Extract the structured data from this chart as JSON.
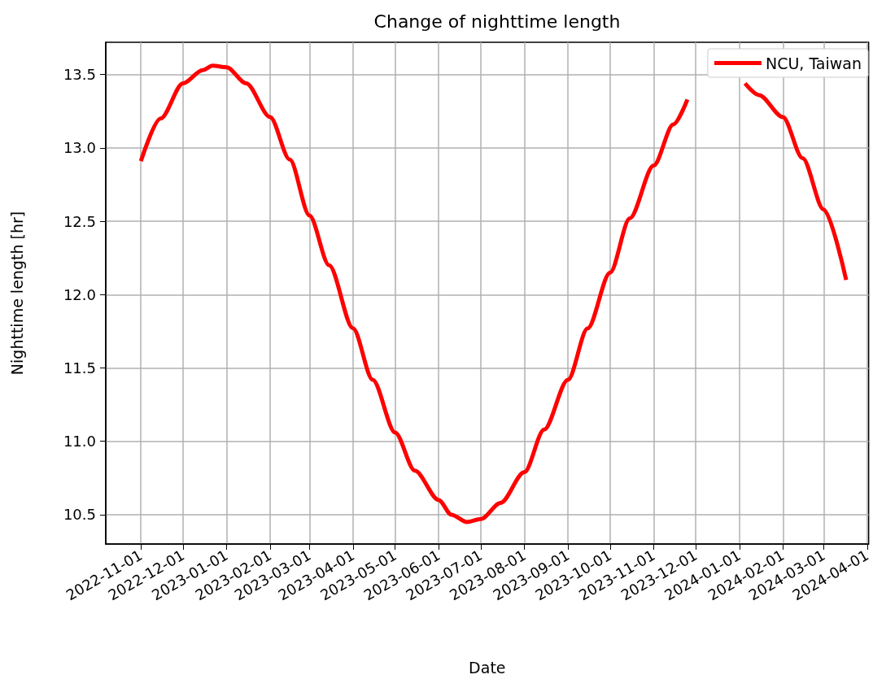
{
  "chart_data": {
    "type": "line",
    "title": "Change of nighttime length",
    "xlabel": "Date",
    "ylabel": "Nighttime length [hr]",
    "series": [
      {
        "name": "NCU, Taiwan",
        "color": "#ff0000",
        "x": [
          "2022-11-01",
          "2022-11-15",
          "2022-12-01",
          "2022-12-15",
          "2022-12-22",
          "2023-01-01",
          "2023-01-15",
          "2023-02-01",
          "2023-02-15",
          "2023-03-01",
          "2023-03-15",
          "2023-04-01",
          "2023-04-15",
          "2023-05-01",
          "2023-05-15",
          "2023-06-01",
          "2023-06-10",
          "2023-06-21",
          "2023-07-01",
          "2023-07-15",
          "2023-08-01",
          "2023-08-15",
          "2023-09-01",
          "2023-09-15",
          "2023-10-01",
          "2023-10-15",
          "2023-11-01",
          "2023-11-15",
          "2023-11-25",
          "2023-12-08",
          "2023-12-22",
          "2024-01-05",
          "2024-01-15",
          "2024-02-01",
          "2024-02-15",
          "2024-03-01",
          "2024-03-17"
        ],
        "values": [
          12.91,
          13.2,
          13.44,
          13.53,
          13.56,
          13.55,
          13.44,
          13.21,
          12.92,
          12.54,
          12.2,
          11.77,
          11.42,
          11.06,
          10.8,
          10.6,
          10.5,
          10.45,
          10.47,
          10.58,
          10.79,
          11.08,
          11.42,
          11.77,
          12.15,
          12.52,
          12.88,
          13.16,
          13.33,
          null,
          null,
          13.44,
          13.36,
          13.21,
          12.93,
          12.58,
          12.1
        ]
      }
    ],
    "xlim": [
      "2022-10-07",
      "2024-04-02"
    ],
    "xticks": [
      "2022-11-01",
      "2022-12-01",
      "2023-01-01",
      "2023-02-01",
      "2023-03-01",
      "2023-04-01",
      "2023-05-01",
      "2023-06-01",
      "2023-07-01",
      "2023-08-01",
      "2023-09-01",
      "2023-10-01",
      "2023-11-01",
      "2023-12-01",
      "2024-01-01",
      "2024-02-01",
      "2024-03-01",
      "2024-04-01"
    ],
    "ylim": [
      10.3,
      13.72
    ],
    "yticks": [
      10.5,
      {
        "value": 11,
        "label": "11.0"
      },
      11.5,
      {
        "value": 12,
        "label": "12.0"
      },
      12.5,
      {
        "value": 13,
        "label": "13.0"
      },
      13.5
    ],
    "grid": true,
    "legend": "top right",
    "marker": "none",
    "line_style": "solid"
  }
}
